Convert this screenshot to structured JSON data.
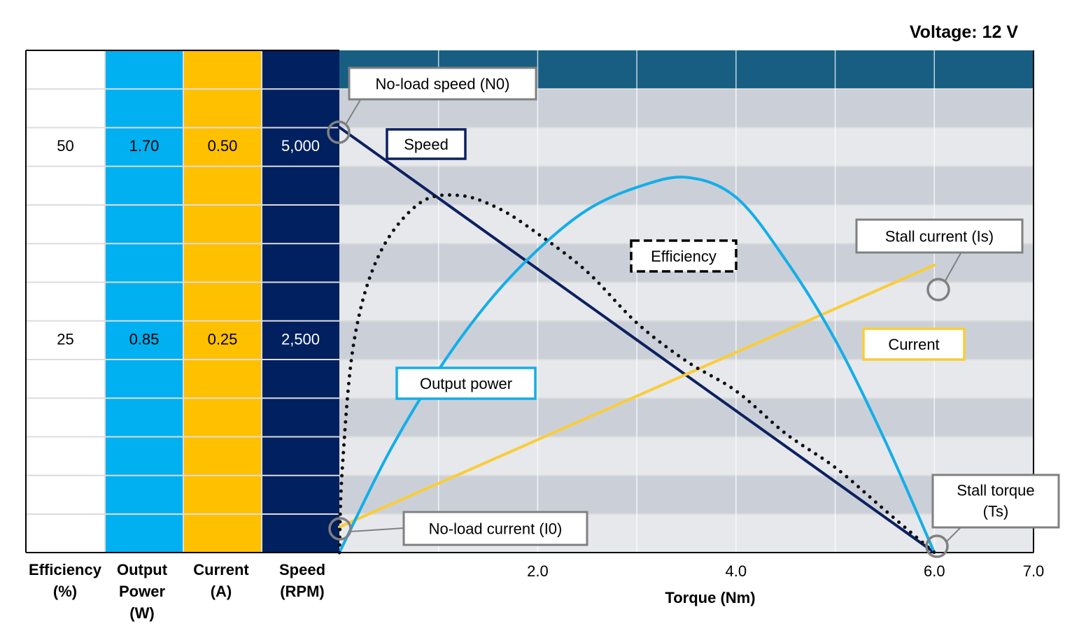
{
  "chart_data": {
    "type": "line",
    "title": "Voltage: 12 V",
    "xlabel": "Torque (Nm)",
    "xlim": [
      0,
      7.0
    ],
    "x_ticks": [
      {
        "value": 2.0,
        "label": "2.0"
      },
      {
        "value": 4.0,
        "label": "4.0"
      },
      {
        "value": 6.0,
        "label": "6.0"
      },
      {
        "value": 7.0,
        "label": "7.0"
      }
    ],
    "grid": true,
    "colors": {
      "efficiency_col": "#ffffff",
      "output_power_col": "#00b0f0",
      "current_col": "#ffc000",
      "speed_col": "#002060",
      "header_band": "#185e82",
      "band_dark": "#cbd0d8",
      "band_light": "#e6e8ec",
      "speed": "#0d2160",
      "current": "#f9cd39",
      "output_power": "#14aee8",
      "efficiency": "#111111",
      "marker": "#808080"
    },
    "y_axes": [
      {
        "key": "efficiency",
        "label": "Efficiency (%)",
        "ticks": [
          "50",
          "25"
        ],
        "max": 50
      },
      {
        "key": "output_power",
        "label": "Output Power (W)",
        "ticks": [
          "1.70",
          "0.85"
        ],
        "max": 1.7
      },
      {
        "key": "current",
        "label": "Current (A)",
        "ticks": [
          "0.50",
          "0.25"
        ],
        "max": 0.5
      },
      {
        "key": "speed",
        "label": "Speed (RPM)",
        "ticks": [
          "5,000",
          "2,500"
        ],
        "max": 5000
      }
    ],
    "series": [
      {
        "name": "Speed",
        "key": "speed",
        "style": "solid",
        "points": [
          [
            0,
            5000
          ],
          [
            6.0,
            0
          ]
        ]
      },
      {
        "name": "Current",
        "key": "current",
        "style": "solid",
        "points": [
          [
            0,
            0.03
          ],
          [
            6.0,
            0.338
          ]
        ]
      },
      {
        "name": "Output power",
        "key": "output_power",
        "style": "solid",
        "points": [
          [
            0,
            0
          ],
          [
            0.5,
            0.4
          ],
          [
            1.0,
            0.73
          ],
          [
            1.5,
            1.0
          ],
          [
            2.0,
            1.21
          ],
          [
            2.5,
            1.37
          ],
          [
            3.0,
            1.46
          ],
          [
            3.5,
            1.5
          ],
          [
            4.0,
            1.42
          ],
          [
            4.5,
            1.17
          ],
          [
            5.0,
            0.85
          ],
          [
            5.5,
            0.45
          ],
          [
            6.0,
            0
          ]
        ]
      },
      {
        "name": "Efficiency",
        "key": "efficiency",
        "style": "dotted",
        "points": [
          [
            0,
            0
          ],
          [
            0.03,
            10
          ],
          [
            0.15,
            25
          ],
          [
            0.4,
            35
          ],
          [
            0.8,
            41
          ],
          [
            1.2,
            42
          ],
          [
            1.6,
            40.5
          ],
          [
            2.0,
            37.5
          ],
          [
            2.5,
            33
          ],
          [
            3.0,
            27
          ],
          [
            3.5,
            22.5
          ],
          [
            4.0,
            19
          ],
          [
            4.5,
            14
          ],
          [
            5.0,
            10
          ],
          [
            5.5,
            5
          ],
          [
            6.0,
            0
          ]
        ]
      }
    ],
    "annotations": [
      {
        "text": "No-load speed (N0)"
      },
      {
        "text": "Stall current (Is)"
      },
      {
        "text": "No-load current (I0)"
      },
      {
        "text": "Stall torque (Ts)"
      }
    ]
  }
}
